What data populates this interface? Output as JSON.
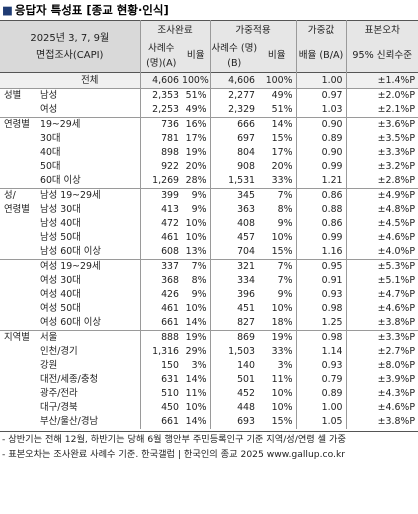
{
  "title": "응답자 특성표 [종교 현황·인식]",
  "header": {
    "survey_line1": "2025년 3, 7, 9월",
    "survey_line2": "면접조사(CAPI)",
    "complete": "조사완료",
    "weighted": "가중적용",
    "weight_val": "가중값",
    "error": "표본오차",
    "cases_ab": "사례수 (명)(A)",
    "ratio1": "비율",
    "cases_b": "사례수 (명)(B)",
    "ratio2": "비율",
    "mult": "배율 (B/A)",
    "conf": "95% 신뢰수준"
  },
  "rows": [
    {
      "group": "",
      "sub": "전체",
      "a": "4,606",
      "ap": "100%",
      "b": "4,606",
      "bp": "100%",
      "m": "1.00",
      "e": "±1.4%P"
    },
    {
      "group": "성별",
      "sub": "남성",
      "a": "2,353",
      "ap": "51%",
      "b": "2,277",
      "bp": "49%",
      "m": "0.97",
      "e": "±2.0%P"
    },
    {
      "group": "",
      "sub": "여성",
      "a": "2,253",
      "ap": "49%",
      "b": "2,329",
      "bp": "51%",
      "m": "1.03",
      "e": "±2.1%P"
    },
    {
      "group": "연령별",
      "sub": "19~29세",
      "a": "736",
      "ap": "16%",
      "b": "666",
      "bp": "14%",
      "m": "0.90",
      "e": "±3.6%P"
    },
    {
      "group": "",
      "sub": "30대",
      "a": "781",
      "ap": "17%",
      "b": "697",
      "bp": "15%",
      "m": "0.89",
      "e": "±3.5%P"
    },
    {
      "group": "",
      "sub": "40대",
      "a": "898",
      "ap": "19%",
      "b": "804",
      "bp": "17%",
      "m": "0.90",
      "e": "±3.3%P"
    },
    {
      "group": "",
      "sub": "50대",
      "a": "922",
      "ap": "20%",
      "b": "908",
      "bp": "20%",
      "m": "0.99",
      "e": "±3.2%P"
    },
    {
      "group": "",
      "sub": "60대 이상",
      "a": "1,269",
      "ap": "28%",
      "b": "1,531",
      "bp": "33%",
      "m": "1.21",
      "e": "±2.8%P"
    },
    {
      "group": "성/",
      "sub": "남성 19~29세",
      "a": "399",
      "ap": "9%",
      "b": "345",
      "bp": "7%",
      "m": "0.86",
      "e": "±4.9%P"
    },
    {
      "group": "연령별",
      "sub": "남성 30대",
      "a": "413",
      "ap": "9%",
      "b": "363",
      "bp": "8%",
      "m": "0.88",
      "e": "±4.8%P"
    },
    {
      "group": "",
      "sub": "남성 40대",
      "a": "472",
      "ap": "10%",
      "b": "408",
      "bp": "9%",
      "m": "0.86",
      "e": "±4.5%P"
    },
    {
      "group": "",
      "sub": "남성 50대",
      "a": "461",
      "ap": "10%",
      "b": "457",
      "bp": "10%",
      "m": "0.99",
      "e": "±4.6%P"
    },
    {
      "group": "",
      "sub": "남성 60대 이상",
      "a": "608",
      "ap": "13%",
      "b": "704",
      "bp": "15%",
      "m": "1.16",
      "e": "±4.0%P"
    },
    {
      "group": "",
      "sub": "여성 19~29세",
      "a": "337",
      "ap": "7%",
      "b": "321",
      "bp": "7%",
      "m": "0.95",
      "e": "±5.3%P"
    },
    {
      "group": "",
      "sub": "여성 30대",
      "a": "368",
      "ap": "8%",
      "b": "334",
      "bp": "7%",
      "m": "0.91",
      "e": "±5.1%P"
    },
    {
      "group": "",
      "sub": "여성 40대",
      "a": "426",
      "ap": "9%",
      "b": "396",
      "bp": "9%",
      "m": "0.93",
      "e": "±4.7%P"
    },
    {
      "group": "",
      "sub": "여성 50대",
      "a": "461",
      "ap": "10%",
      "b": "451",
      "bp": "10%",
      "m": "0.98",
      "e": "±4.6%P"
    },
    {
      "group": "",
      "sub": "여성 60대 이상",
      "a": "661",
      "ap": "14%",
      "b": "827",
      "bp": "18%",
      "m": "1.25",
      "e": "±3.8%P"
    },
    {
      "group": "지역별",
      "sub": "서울",
      "a": "888",
      "ap": "19%",
      "b": "869",
      "bp": "19%",
      "m": "0.98",
      "e": "±3.3%P"
    },
    {
      "group": "",
      "sub": "인천/경기",
      "a": "1,316",
      "ap": "29%",
      "b": "1,503",
      "bp": "33%",
      "m": "1.14",
      "e": "±2.7%P"
    },
    {
      "group": "",
      "sub": "강원",
      "a": "150",
      "ap": "3%",
      "b": "140",
      "bp": "3%",
      "m": "0.93",
      "e": "±8.0%P"
    },
    {
      "group": "",
      "sub": "대전/세종/충청",
      "a": "631",
      "ap": "14%",
      "b": "501",
      "bp": "11%",
      "m": "0.79",
      "e": "±3.9%P"
    },
    {
      "group": "",
      "sub": "광주/전라",
      "a": "510",
      "ap": "11%",
      "b": "452",
      "bp": "10%",
      "m": "0.89",
      "e": "±4.3%P"
    },
    {
      "group": "",
      "sub": "대구/경북",
      "a": "450",
      "ap": "10%",
      "b": "448",
      "bp": "10%",
      "m": "1.00",
      "e": "±4.6%P"
    },
    {
      "group": "",
      "sub": "부산/울산/경남",
      "a": "661",
      "ap": "14%",
      "b": "693",
      "bp": "15%",
      "m": "1.05",
      "e": "±3.8%P"
    }
  ],
  "footnotes": [
    "- 상반기는 전해 12월, 하반기는 당해 6월 행안부 주민등록인구 기준 지역/성/연령 셀 가중",
    "- 표본오차는 조사완료 사례수 기준. 한국갤럽 | 한국인의 종교 2025 www.gallup.co.kr"
  ]
}
